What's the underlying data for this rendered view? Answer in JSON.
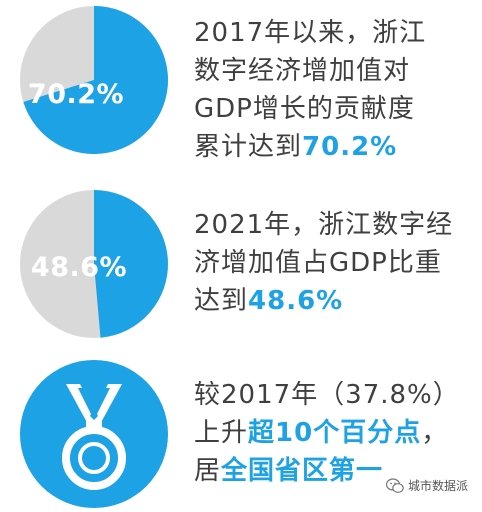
{
  "stat1": {
    "percent_label": "70.2%",
    "value": 70.2,
    "line1": "2017年以来，浙江",
    "line2": "数字经济增加值对",
    "line3": "GDP增长的贡献度",
    "line4_prefix": "累计达到",
    "line4_highlight": "70.2%"
  },
  "stat2": {
    "percent_label": "48.6%",
    "value": 48.6,
    "line1": "2021年，浙江数字经",
    "line2": "济增加值占GDP比重",
    "line3_prefix": "达到",
    "line3_highlight": "48.6%"
  },
  "stat3": {
    "line1": "较2017年（37.8%）",
    "line2_prefix": "上升",
    "line2_highlight": "超10个百分点",
    "line2_suffix": "，",
    "line3_prefix": "居",
    "line3_highlight": "全国省区第一",
    "icon": "medal-icon"
  },
  "watermark": {
    "text": "城市数据派",
    "icon": "wechat-icon"
  },
  "colors": {
    "accent": "#1da2e6",
    "pie_gray": "#d9d9d9",
    "text": "#3f3f3f"
  }
}
